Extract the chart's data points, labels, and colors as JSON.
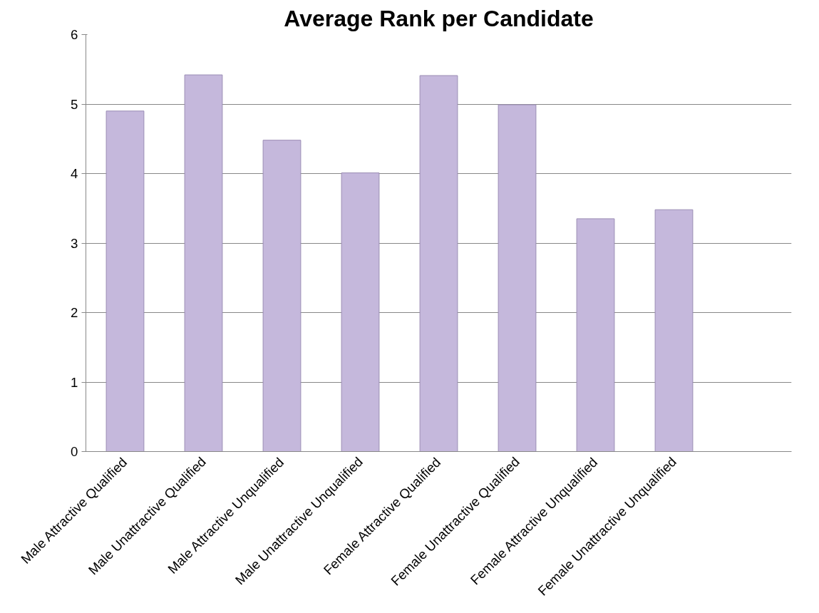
{
  "chart_data": {
    "type": "bar",
    "title": "Average Rank per Candidate",
    "categories": [
      "Male Attractive Qualified",
      "Male Unattractive Qualified",
      "Male Attractive Unqualified",
      "Male Unattractive Unqualified",
      "Female Attractive Qualified",
      "Female Unattractive Qualified",
      "Female Attractive Unqualified",
      "Female Unattractive Unqualified",
      null
    ],
    "values": [
      4.9,
      5.42,
      4.48,
      4.01,
      5.41,
      4.99,
      3.35,
      3.48,
      null
    ],
    "color": "#c5b8dc",
    "ylim": [
      0,
      6
    ],
    "yticks": [
      0,
      1,
      2,
      3,
      4,
      5,
      6
    ],
    "grid": "y"
  }
}
